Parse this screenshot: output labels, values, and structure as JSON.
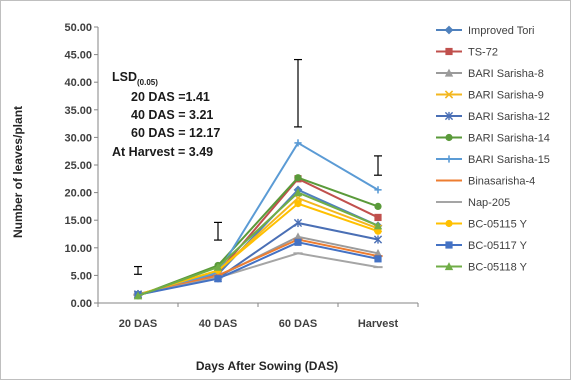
{
  "chart_data": {
    "type": "line",
    "categories": [
      "20 DAS",
      "40 DAS",
      "60 DAS",
      "Harvest"
    ],
    "ylim": [
      0,
      50
    ],
    "yticks": [
      "0.00",
      "5.00",
      "10.00",
      "15.00",
      "20.00",
      "25.00",
      "30.00",
      "35.00",
      "40.00",
      "45.00",
      "50.00"
    ],
    "xlabel": "Days After Sowing (DAS)",
    "ylabel": "Number of leaves/plant",
    "legend_position": "right",
    "series": [
      {
        "name": "Improved Tori",
        "color": "#4f81bd",
        "marker": "diamond",
        "values": [
          1.6,
          5.2,
          20.5,
          14.0
        ]
      },
      {
        "name": "TS-72",
        "color": "#c0504d",
        "marker": "square",
        "values": [
          1.4,
          5.5,
          22.5,
          15.5
        ]
      },
      {
        "name": "BARI Sarisha-8",
        "color": "#9b9b9b",
        "marker": "triangle",
        "values": [
          1.5,
          4.8,
          12.0,
          9.0
        ]
      },
      {
        "name": "BARI Sarisha-9",
        "color": "#f3b71f",
        "marker": "x",
        "values": [
          1.5,
          5.8,
          19.0,
          13.5
        ]
      },
      {
        "name": "BARI Sarisha-12",
        "color": "#4a6fb5",
        "marker": "star",
        "values": [
          1.6,
          4.5,
          14.5,
          11.5
        ]
      },
      {
        "name": "BARI Sarisha-14",
        "color": "#5a9a3a",
        "marker": "circle",
        "values": [
          1.3,
          6.8,
          22.7,
          17.5
        ]
      },
      {
        "name": "BARI Sarisha-15",
        "color": "#5b9bd5",
        "marker": "plus",
        "values": [
          1.4,
          5.5,
          29.0,
          20.5
        ]
      },
      {
        "name": "Binasarisha-4",
        "color": "#ed7d31",
        "marker": "dash",
        "values": [
          1.5,
          5.0,
          11.5,
          8.5
        ]
      },
      {
        "name": "Nap-205",
        "color": "#a5a5a5",
        "marker": "dash",
        "values": [
          1.5,
          4.6,
          9.0,
          6.5
        ]
      },
      {
        "name": "BC-05115 Y",
        "color": "#ffc000",
        "marker": "circle",
        "values": [
          1.5,
          5.9,
          18.0,
          13.0
        ]
      },
      {
        "name": "BC-05117 Y",
        "color": "#4472c4",
        "marker": "square",
        "values": [
          1.5,
          4.4,
          11.0,
          8.0
        ]
      },
      {
        "name": "BC-05118 Y",
        "color": "#70ad47",
        "marker": "triangle",
        "values": [
          1.3,
          6.5,
          20.0,
          14.0
        ]
      }
    ],
    "error_bars": [
      {
        "category": "20 DAS",
        "center": 5.9,
        "half_width": 0.7
      },
      {
        "category": "40 DAS",
        "center": 13.0,
        "half_width": 1.6
      },
      {
        "category": "60 DAS",
        "center": 38.0,
        "half_width": 6.1
      },
      {
        "category": "Harvest",
        "center": 24.9,
        "half_width": 1.75
      }
    ],
    "annotation": {
      "lsd_label": "LSD",
      "lsd_subscript": "(0.05)",
      "lines": [
        "20 DAS =1.41",
        "40 DAS = 3.21",
        "60 DAS = 12.17",
        "At Harvest = 3.49"
      ]
    }
  }
}
